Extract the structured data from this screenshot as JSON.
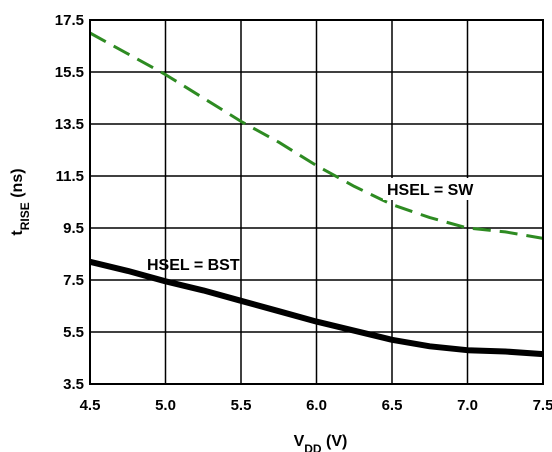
{
  "chart_data": {
    "type": "line",
    "title": "",
    "xlabel_main": "V",
    "xlabel_sub": "DD",
    "xlabel_unit": " (V)",
    "ylabel_main": "t",
    "ylabel_sub": "RISE",
    "ylabel_unit": " (ns)",
    "xlim": [
      4.5,
      7.5
    ],
    "ylim": [
      3.5,
      17.5
    ],
    "x_ticks": [
      "4.5",
      "5.0",
      "5.5",
      "6.0",
      "6.5",
      "7.0",
      "7.5"
    ],
    "y_ticks": [
      "3.5",
      "5.5",
      "7.5",
      "9.5",
      "11.5",
      "13.5",
      "15.5",
      "17.5"
    ],
    "grid": true,
    "series": [
      {
        "name": "HSEL = SW",
        "color": "#2e8b22",
        "style": "dashed",
        "x": [
          4.5,
          4.75,
          5.0,
          5.25,
          5.5,
          5.75,
          6.0,
          6.25,
          6.5,
          6.75,
          7.0,
          7.25,
          7.5
        ],
        "y": [
          17.0,
          16.2,
          15.4,
          14.5,
          13.6,
          12.8,
          11.9,
          11.1,
          10.4,
          9.9,
          9.5,
          9.35,
          9.1
        ]
      },
      {
        "name": "HSEL = BST",
        "color": "#000000",
        "style": "solid",
        "x": [
          4.5,
          4.75,
          5.0,
          5.25,
          5.5,
          5.75,
          6.0,
          6.25,
          6.5,
          6.75,
          7.0,
          7.25,
          7.5
        ],
        "y": [
          8.2,
          7.85,
          7.45,
          7.1,
          6.7,
          6.3,
          5.9,
          5.55,
          5.2,
          4.95,
          4.8,
          4.75,
          4.65
        ]
      }
    ]
  }
}
